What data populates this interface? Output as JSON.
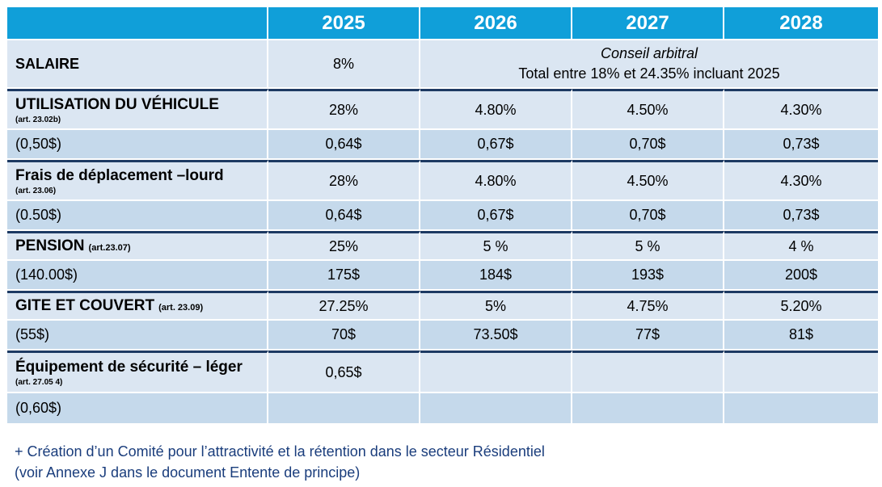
{
  "years": [
    "2025",
    "2026",
    "2027",
    "2028"
  ],
  "rows": {
    "salaire": {
      "label": "SALAIRE",
      "y2025": "8%",
      "arbitral_title": "Conseil arbitral",
      "arbitral_text": "Total entre 18% et 24.35% incluant 2025"
    },
    "vehicule": {
      "label": "UTILISATION DU VÉHICULE",
      "ref": "(art. 23.02b)",
      "values": [
        "28%",
        "4.80%",
        "4.50%",
        "4.30%"
      ],
      "base": "(0,50$)",
      "amounts": [
        "0,64$",
        "0,67$",
        "0,70$",
        "0,73$"
      ]
    },
    "deplacement": {
      "label": "Frais de déplacement –lourd",
      "ref": "(art. 23.06)",
      "values": [
        "28%",
        "4.80%",
        "4.50%",
        "4.30%"
      ],
      "base": "(0.50$)",
      "amounts": [
        "0,64$",
        "0,67$",
        "0,70$",
        "0,73$"
      ]
    },
    "pension": {
      "label": "PENSION",
      "ref": "(art.23.07)",
      "values": [
        "25%",
        "5 %",
        "5 %",
        "4 %"
      ],
      "base": "(140.00$)",
      "amounts": [
        "175$",
        "184$",
        "193$",
        "200$"
      ]
    },
    "gite": {
      "label": "GITE ET COUVERT",
      "ref": "(art. 23.09)",
      "values": [
        "27.25%",
        "5%",
        "4.75%",
        "5.20%"
      ],
      "base": "(55$)",
      "amounts": [
        "70$",
        "73.50$",
        "77$",
        "81$"
      ]
    },
    "equipement": {
      "label": "Équipement de sécurité – léger",
      "ref": "(art. 27.05 4)",
      "values": [
        "0,65$",
        "",
        "",
        ""
      ],
      "base": "(0,60$)",
      "amounts": [
        "",
        "",
        "",
        ""
      ]
    }
  },
  "footnote": {
    "line1": "+ Création d’un Comité pour l’attractivité et la rétention dans le secteur Résidentiel",
    "line2": "(voir Annexe J dans le document Entente de principe)"
  },
  "colors": {
    "header": "#109fd9",
    "row_light": "#dbe6f2",
    "row_dark": "#c5d9eb",
    "separator": "#1d3a63",
    "footnote": "#1a3d7c"
  }
}
